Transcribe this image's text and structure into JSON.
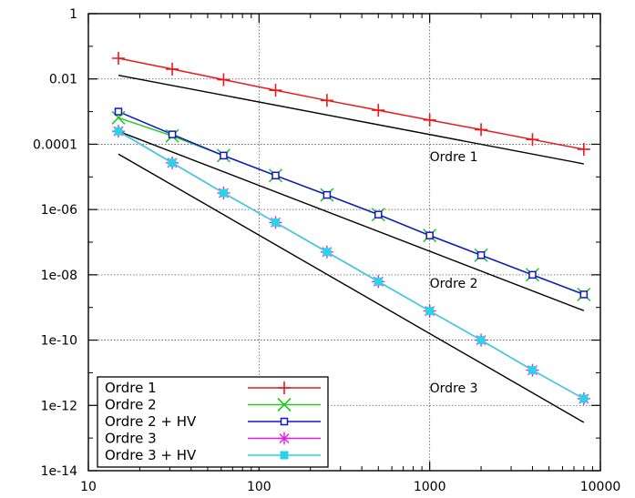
{
  "chart_data": {
    "type": "line",
    "xscale": "log",
    "yscale": "log",
    "xlim": [
      10,
      10000
    ],
    "ylim": [
      1e-14,
      1
    ],
    "grid": true,
    "x_ticks": [
      {
        "value": 10,
        "label": "10"
      },
      {
        "value": 100,
        "label": "100"
      },
      {
        "value": 1000,
        "label": "1000"
      },
      {
        "value": 10000,
        "label": "10000"
      }
    ],
    "y_ticks": [
      {
        "value": 1,
        "label": "1"
      },
      {
        "value": 0.01,
        "label": "0.01"
      },
      {
        "value": 0.0001,
        "label": "0.0001"
      },
      {
        "value": 1e-06,
        "label": "1e-06"
      },
      {
        "value": 1e-08,
        "label": "1e-08"
      },
      {
        "value": 1e-10,
        "label": "1e-10"
      },
      {
        "value": 1e-12,
        "label": "1e-12"
      },
      {
        "value": 1e-14,
        "label": "1e-14"
      }
    ],
    "x": [
      15,
      31,
      62,
      125,
      250,
      500,
      1000,
      2000,
      4000,
      8000
    ],
    "legend_placement": "bottom-left",
    "series": [
      {
        "name": "Ordre 1",
        "color": "#e8191a",
        "marker": "plus",
        "values": [
          0.043,
          0.02,
          0.0095,
          0.0045,
          0.0022,
          0.0011,
          0.00055,
          0.00028,
          0.00014,
          7e-05
        ]
      },
      {
        "name": "Ordre 2",
        "color": "#22cc22",
        "marker": "cross",
        "values": [
          0.00065,
          0.00018,
          4.5e-05,
          1.1e-05,
          2.8e-06,
          7e-07,
          1.6e-07,
          4e-08,
          1e-08,
          2.5e-09
        ]
      },
      {
        "name": "Ordre 2 + HV",
        "color": "#1414c8",
        "marker": "square-open",
        "values": [
          0.001,
          0.0002,
          4.5e-05,
          1.1e-05,
          2.8e-06,
          7e-07,
          1.6e-07,
          4e-08,
          1e-08,
          2.5e-09
        ]
      },
      {
        "name": "Ordre 3",
        "color": "#e020e0",
        "marker": "star",
        "values": [
          0.00025,
          2.7e-05,
          3.2e-06,
          4e-07,
          5e-08,
          6.2e-09,
          7.8e-10,
          1e-10,
          1.2e-11,
          1.6e-12
        ]
      },
      {
        "name": "Ordre 3 + HV",
        "color": "#2ed2e6",
        "marker": "square-filled",
        "values": [
          0.00025,
          2.7e-05,
          3.2e-06,
          4e-07,
          5e-08,
          6.2e-09,
          7.8e-10,
          1e-10,
          1.2e-11,
          1.6e-12
        ]
      }
    ],
    "reference_lines": [
      {
        "label": "Ordre 1",
        "color": "#000000",
        "x": [
          15,
          8000
        ],
        "values": [
          0.013,
          2.5e-05
        ],
        "label_at": [
          1000,
          3e-05
        ]
      },
      {
        "label": "Ordre 2",
        "color": "#000000",
        "x": [
          15,
          8000
        ],
        "values": [
          0.00025,
          8e-10
        ],
        "label_at": [
          1000,
          4e-09
        ]
      },
      {
        "label": "Ordre 3",
        "color": "#000000",
        "x": [
          15,
          8000
        ],
        "values": [
          5e-05,
          3e-13
        ],
        "label_at": [
          1000,
          2.5e-12
        ]
      }
    ]
  }
}
